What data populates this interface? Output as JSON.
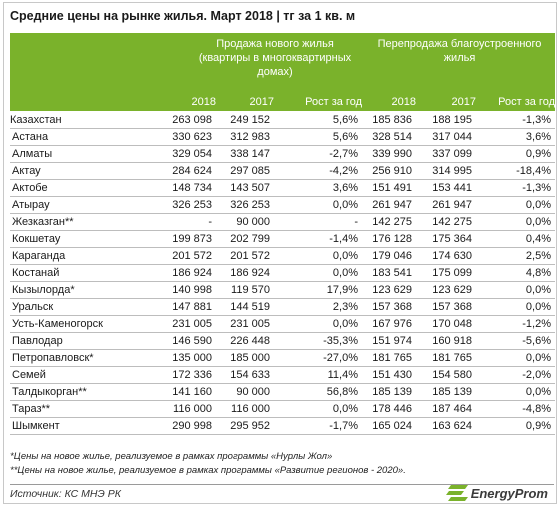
{
  "title": "Средние цены на рынке жилья. Март 2018 | тг за 1 кв. м",
  "header": {
    "group_new": [
      "Продажа нового жилья",
      "(квартиры в многоквартирных",
      "домах)"
    ],
    "group_resale": [
      "Перепродажа благоустроенного",
      "жилья"
    ],
    "columns": [
      "2018",
      "2017",
      "Рост за год",
      "2018",
      "2017",
      "Рост за год"
    ]
  },
  "rows": [
    [
      "Казахстан",
      "263 098",
      "249 152",
      "5,6%",
      "185 836",
      "188 195",
      "-1,3%"
    ],
    [
      "Астана",
      "330 623",
      "312 983",
      "5,6%",
      "328 514",
      "317 044",
      "3,6%"
    ],
    [
      "Алматы",
      "329 054",
      "338 147",
      "-2,7%",
      "339 990",
      "337 099",
      "0,9%"
    ],
    [
      "Актау",
      "284 624",
      "297 085",
      "-4,2%",
      "256 910",
      "314 995",
      "-18,4%"
    ],
    [
      "Актобе",
      "148 734",
      "143 507",
      "3,6%",
      "151 491",
      "153 441",
      "-1,3%"
    ],
    [
      "Атырау",
      "326 253",
      "326 253",
      "0,0%",
      "261 947",
      "261 947",
      "0,0%"
    ],
    [
      "Жезказган**",
      "-",
      "90 000",
      "-",
      "142 275",
      "142 275",
      "0,0%"
    ],
    [
      "Кокшетау",
      "199 873",
      "202 799",
      "-1,4%",
      "176 128",
      "175 364",
      "0,4%"
    ],
    [
      "Караганда",
      "201 572",
      "201 572",
      "0,0%",
      "179 046",
      "174 630",
      "2,5%"
    ],
    [
      "Костанай",
      "186 924",
      "186 924",
      "0,0%",
      "183 541",
      "175 099",
      "4,8%"
    ],
    [
      "Кызылорда*",
      "140 998",
      "119 570",
      "17,9%",
      "123 629",
      "123 629",
      "0,0%"
    ],
    [
      "Уральск",
      "147 881",
      "144 519",
      "2,3%",
      "157 368",
      "157 368",
      "0,0%"
    ],
    [
      "Усть-Каменогорск",
      "231 005",
      "231 005",
      "0,0%",
      "167 976",
      "170 048",
      "-1,2%"
    ],
    [
      "Павлодар",
      "146 590",
      "226 448",
      "-35,3%",
      "151 974",
      "160 918",
      "-5,6%"
    ],
    [
      "Петропавловск*",
      "135 000",
      "185 000",
      "-27,0%",
      "181 765",
      "181 765",
      "0,0%"
    ],
    [
      "Семей",
      "172 336",
      "154 633",
      "11,4%",
      "151 430",
      "154 580",
      "-2,0%"
    ],
    [
      "Талдыкорган**",
      "141 160",
      "90 000",
      "56,8%",
      "185 139",
      "185 139",
      "0,0%"
    ],
    [
      "Тараз**",
      "116 000",
      "116 000",
      "0,0%",
      "178 446",
      "187 464",
      "-4,8%"
    ],
    [
      "Шымкент",
      "290 998",
      "295 952",
      "-1,7%",
      "165 024",
      "163 624",
      "0,9%"
    ]
  ],
  "notes": [
    "*Цены на новое жилье, реализуемое в рамках программы «Нурлы Жол»",
    "**Цены на новое жилье, реализуемое в рамках программы «Развитие регионов - 2020»."
  ],
  "source": "Источник: КС МНЭ РК",
  "logo_text": "EnergyProm",
  "colors": {
    "header_bg": "#7ab22b",
    "header_text": "#ffffff",
    "logo_accent": "#7ab22b"
  }
}
